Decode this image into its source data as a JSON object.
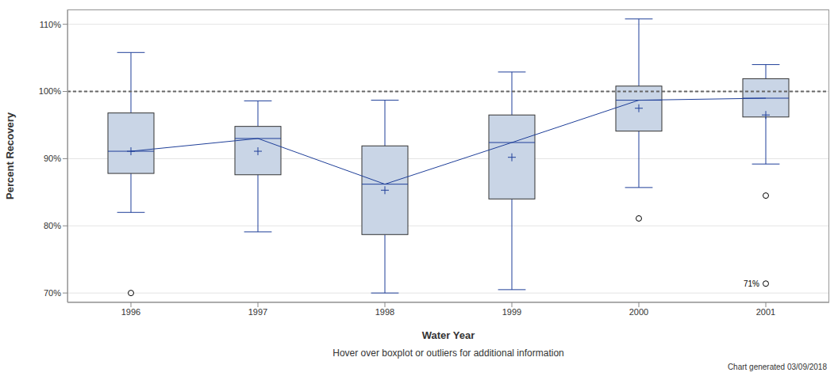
{
  "chart_data": {
    "type": "boxplot",
    "x_label": "Water Year",
    "y_label": "Percent Recovery",
    "footnote": "Hover over boxplot or outliers for additional information",
    "caption": "Chart generated 03/09/2018",
    "categories": [
      "1996",
      "1997",
      "1998",
      "1999",
      "2000",
      "2001"
    ],
    "whisker_low": [
      82.0,
      79.1,
      70.0,
      70.5,
      85.7,
      89.2
    ],
    "q1": [
      87.8,
      87.6,
      78.7,
      84.0,
      94.1,
      96.2
    ],
    "median": [
      91.1,
      93.0,
      86.2,
      92.4,
      98.7,
      99.0
    ],
    "q3": [
      96.8,
      94.8,
      91.9,
      96.5,
      100.8,
      101.9
    ],
    "whisker_high": [
      105.8,
      98.6,
      98.7,
      102.9,
      110.8,
      104.0
    ],
    "mean": [
      91.1,
      91.1,
      85.3,
      90.2,
      97.5,
      96.5
    ],
    "outliers": [
      [
        70.0
      ],
      [],
      [],
      [],
      [
        81.1
      ],
      [
        84.5,
        {
          "value": 71.4,
          "label": "71%"
        }
      ]
    ],
    "reference_value": 100,
    "ylim": [
      68.6,
      112.2
    ],
    "yticks": [
      {
        "value": 70,
        "label": "70%"
      },
      {
        "value": 80,
        "label": "80%"
      },
      {
        "value": 90,
        "label": "90%"
      },
      {
        "value": 100,
        "label": "100%"
      },
      {
        "value": 110,
        "label": "110%"
      }
    ],
    "grid": true,
    "color": "#1f3f99",
    "marker": "plus"
  }
}
